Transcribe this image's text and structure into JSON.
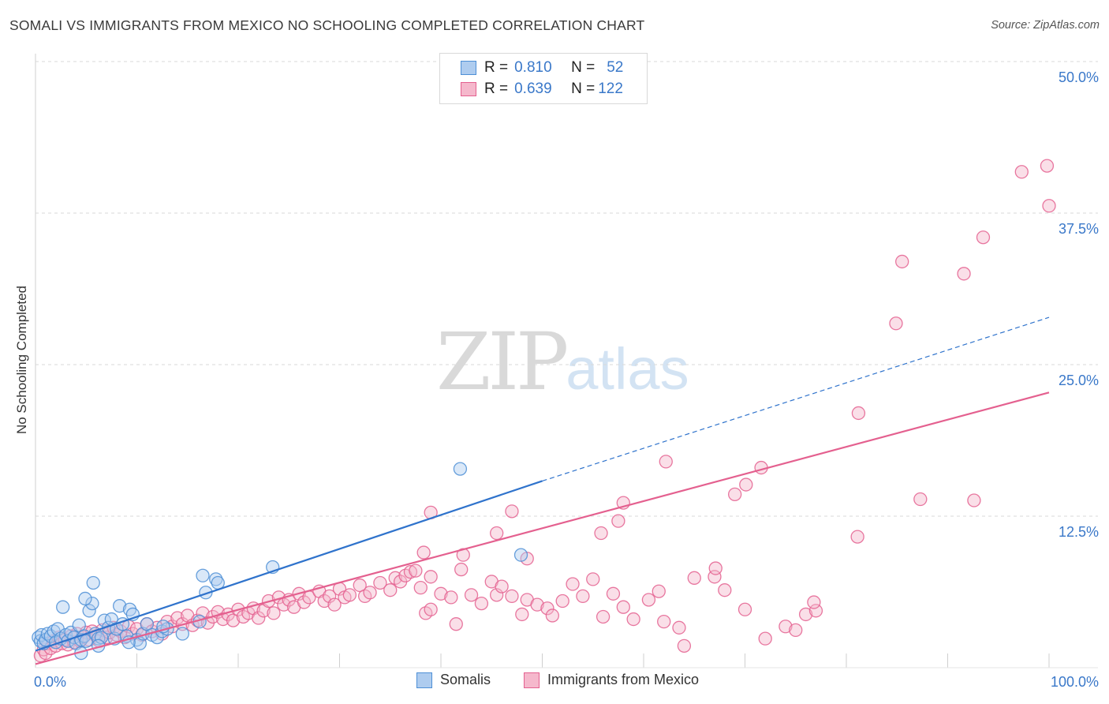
{
  "title": "SOMALI VS IMMIGRANTS FROM MEXICO NO SCHOOLING COMPLETED CORRELATION CHART",
  "source": "Source: ZipAtlas.com",
  "watermark": {
    "part1": "ZIP",
    "part2": "atlas"
  },
  "colors": {
    "somali": "#4d8fd6",
    "somali_fill": "#aeccef",
    "mexico": "#e4608f",
    "mexico_fill": "#f5b8cc",
    "value_text": "#3a78c9",
    "grid": "#d9d9d9"
  },
  "legend": {
    "rows": [
      {
        "r_label": "R =",
        "r_value": "0.810",
        "n_label": "N =",
        "n_value": "52"
      },
      {
        "r_label": "R =",
        "r_value": "0.639",
        "n_label": "N =",
        "n_value": "122"
      }
    ]
  },
  "chart_data": {
    "type": "scatter",
    "title": "SOMALI VS IMMIGRANTS FROM MEXICO NO SCHOOLING COMPLETED CORRELATION CHART",
    "xlabel": "",
    "ylabel": "No Schooling Completed",
    "xlim": [
      0,
      100
    ],
    "ylim": [
      0,
      50
    ],
    "x_tick_labels": [
      "0.0%",
      "100.0%"
    ],
    "y_ticks": [
      12.5,
      25.0,
      37.5,
      50.0
    ],
    "y_tick_labels": [
      "12.5%",
      "25.0%",
      "37.5%",
      "50.0%"
    ],
    "series": [
      {
        "name": "Somalis",
        "r": 0.81,
        "n": 52,
        "trend": {
          "x0": 0,
          "y0": 1.4,
          "x1": 50,
          "y1": 15.4,
          "dashed_to_x": 100,
          "dashed_to_y": 28.9
        },
        "points": [
          [
            0.3,
            2.5
          ],
          [
            0.5,
            2.2
          ],
          [
            0.6,
            2.7
          ],
          [
            0.8,
            2.0
          ],
          [
            1.0,
            2.3
          ],
          [
            1.2,
            2.8
          ],
          [
            1.5,
            2.6
          ],
          [
            1.8,
            3.0
          ],
          [
            2.0,
            2.1
          ],
          [
            2.2,
            3.2
          ],
          [
            2.5,
            2.4
          ],
          [
            2.7,
            5.0
          ],
          [
            3.0,
            2.7
          ],
          [
            3.2,
            2.2
          ],
          [
            3.5,
            2.9
          ],
          [
            3.8,
            2.5
          ],
          [
            4.0,
            2.0
          ],
          [
            4.3,
            3.5
          ],
          [
            4.5,
            2.3
          ],
          [
            4.8,
            2.6
          ],
          [
            5.0,
            2.2
          ],
          [
            5.3,
            4.7
          ],
          [
            5.6,
            5.3
          ],
          [
            5.9,
            2.8
          ],
          [
            6.2,
            2.4
          ],
          [
            6.5,
            2.5
          ],
          [
            6.8,
            3.9
          ],
          [
            7.2,
            3.3
          ],
          [
            7.5,
            4.0
          ],
          [
            7.8,
            2.4
          ],
          [
            8.0,
            3.2
          ],
          [
            8.3,
            5.1
          ],
          [
            8.6,
            3.6
          ],
          [
            9.0,
            2.6
          ],
          [
            9.3,
            4.8
          ],
          [
            9.6,
            4.4
          ],
          [
            10.0,
            2.3
          ],
          [
            10.3,
            2.0
          ],
          [
            10.6,
            2.8
          ],
          [
            11.0,
            3.6
          ],
          [
            11.5,
            2.7
          ],
          [
            12.0,
            2.5
          ],
          [
            12.5,
            3.0
          ],
          [
            13.0,
            3.2
          ],
          [
            14.5,
            2.8
          ],
          [
            4.5,
            1.2
          ],
          [
            6.2,
            1.8
          ],
          [
            9.2,
            2.1
          ],
          [
            12.6,
            3.4
          ],
          [
            16.2,
            3.8
          ],
          [
            16.8,
            6.2
          ],
          [
            17.8,
            7.3
          ]
        ],
        "extra_points": [
          [
            5.7,
            7.0
          ],
          [
            4.9,
            5.7
          ],
          [
            16.5,
            7.6
          ],
          [
            18.0,
            7.0
          ],
          [
            23.4,
            8.3
          ],
          [
            47.9,
            9.3
          ],
          [
            41.9,
            16.4
          ]
        ]
      },
      {
        "name": "Immigrants from Mexico",
        "r": 0.639,
        "n": 122,
        "trend": {
          "x0": 0,
          "y0": 0.3,
          "x1": 100,
          "y1": 22.7
        },
        "points": [
          [
            0.5,
            1.0
          ],
          [
            0.8,
            1.5
          ],
          [
            1.0,
            1.2
          ],
          [
            1.2,
            2.0
          ],
          [
            1.5,
            1.6
          ],
          [
            1.8,
            2.2
          ],
          [
            2.0,
            1.8
          ],
          [
            2.3,
            2.5
          ],
          [
            2.6,
            2.0
          ],
          [
            2.9,
            2.3
          ],
          [
            3.2,
            1.9
          ],
          [
            3.5,
            2.6
          ],
          [
            3.8,
            2.1
          ],
          [
            4.1,
            2.8
          ],
          [
            4.4,
            2.2
          ],
          [
            4.7,
            2.5
          ],
          [
            5.0,
            2.9
          ],
          [
            5.3,
            2.3
          ],
          [
            5.6,
            3.0
          ],
          [
            6.0,
            2.6
          ],
          [
            6.3,
            2.2
          ],
          [
            6.6,
            3.1
          ],
          [
            7.0,
            2.5
          ],
          [
            7.3,
            2.9
          ],
          [
            7.7,
            3.3
          ],
          [
            8.0,
            2.7
          ],
          [
            8.4,
            3.0
          ],
          [
            8.8,
            2.5
          ],
          [
            9.2,
            3.4
          ],
          [
            9.6,
            2.8
          ],
          [
            10.0,
            3.2
          ],
          [
            10.5,
            2.7
          ],
          [
            11.0,
            3.6
          ],
          [
            11.5,
            3.0
          ],
          [
            12.0,
            3.3
          ],
          [
            12.5,
            2.8
          ],
          [
            13.0,
            3.8
          ],
          [
            13.5,
            3.4
          ],
          [
            14.0,
            4.1
          ],
          [
            14.5,
            3.6
          ],
          [
            15.0,
            4.3
          ],
          [
            15.5,
            3.5
          ],
          [
            16.0,
            3.9
          ],
          [
            16.5,
            4.5
          ],
          [
            17.0,
            3.7
          ],
          [
            17.5,
            4.2
          ],
          [
            18.0,
            4.6
          ],
          [
            18.5,
            4.0
          ],
          [
            19.0,
            4.4
          ],
          [
            19.5,
            3.9
          ],
          [
            20.0,
            4.8
          ],
          [
            20.5,
            4.2
          ],
          [
            21.0,
            4.5
          ],
          [
            21.5,
            4.9
          ],
          [
            22.0,
            4.1
          ],
          [
            22.5,
            4.7
          ],
          [
            23.0,
            5.5
          ],
          [
            23.5,
            4.5
          ],
          [
            24.0,
            5.8
          ],
          [
            24.5,
            5.2
          ],
          [
            25.0,
            5.6
          ],
          [
            25.5,
            5.0
          ],
          [
            26.0,
            6.1
          ],
          [
            26.5,
            5.4
          ],
          [
            27.0,
            5.8
          ],
          [
            28.0,
            6.3
          ],
          [
            28.5,
            5.5
          ],
          [
            29.0,
            5.9
          ],
          [
            29.5,
            5.2
          ],
          [
            30.0,
            6.5
          ],
          [
            30.5,
            5.8
          ],
          [
            31.0,
            6.0
          ],
          [
            32.0,
            6.8
          ],
          [
            32.5,
            5.9
          ],
          [
            33.0,
            6.2
          ],
          [
            34.0,
            7.0
          ],
          [
            35.0,
            6.4
          ],
          [
            35.5,
            7.4
          ],
          [
            36.0,
            7.1
          ],
          [
            36.5,
            7.6
          ],
          [
            37.0,
            7.9
          ],
          [
            37.5,
            8.0
          ],
          [
            38.0,
            6.6
          ],
          [
            38.5,
            4.5
          ],
          [
            39.0,
            7.5
          ],
          [
            40.0,
            6.1
          ],
          [
            41.0,
            5.8
          ],
          [
            42.0,
            8.1
          ],
          [
            43.0,
            6.0
          ],
          [
            44.0,
            5.3
          ],
          [
            45.0,
            7.1
          ],
          [
            45.5,
            6.0
          ],
          [
            46.0,
            6.7
          ],
          [
            47.0,
            5.9
          ],
          [
            48.0,
            4.4
          ],
          [
            48.5,
            5.6
          ],
          [
            49.5,
            5.2
          ],
          [
            50.5,
            4.9
          ],
          [
            51.0,
            4.3
          ],
          [
            52.0,
            5.5
          ],
          [
            53.0,
            6.9
          ],
          [
            54.0,
            5.9
          ],
          [
            55.0,
            7.3
          ],
          [
            56.0,
            4.2
          ],
          [
            57.0,
            6.1
          ],
          [
            58.0,
            5.0
          ],
          [
            59.0,
            4.0
          ],
          [
            60.5,
            5.6
          ],
          [
            61.5,
            6.3
          ],
          [
            62.0,
            3.8
          ],
          [
            63.5,
            3.3
          ],
          [
            64.0,
            1.8
          ],
          [
            65.0,
            7.4
          ],
          [
            67.0,
            7.5
          ],
          [
            68.0,
            6.4
          ],
          [
            70.0,
            4.8
          ],
          [
            72.0,
            2.4
          ],
          [
            74.0,
            3.4
          ],
          [
            75.0,
            3.1
          ],
          [
            76.0,
            4.4
          ],
          [
            77.0,
            4.7
          ],
          [
            39.0,
            4.8
          ],
          [
            41.5,
            3.6
          ]
        ],
        "outliers": [
          [
            39.0,
            12.8
          ],
          [
            38.3,
            9.5
          ],
          [
            42.2,
            9.3
          ],
          [
            45.5,
            11.1
          ],
          [
            47.0,
            12.9
          ],
          [
            48.5,
            9.0
          ],
          [
            55.8,
            11.1
          ],
          [
            57.5,
            12.1
          ],
          [
            58.0,
            13.6
          ],
          [
            62.2,
            17.0
          ],
          [
            67.1,
            8.2
          ],
          [
            69.0,
            14.3
          ],
          [
            70.1,
            15.1
          ],
          [
            71.6,
            16.5
          ],
          [
            76.8,
            5.4
          ],
          [
            81.1,
            10.8
          ],
          [
            81.2,
            21.0
          ],
          [
            84.9,
            28.4
          ],
          [
            85.5,
            33.5
          ],
          [
            87.3,
            13.9
          ],
          [
            91.6,
            32.5
          ],
          [
            92.6,
            13.8
          ],
          [
            93.5,
            35.5
          ],
          [
            97.3,
            40.9
          ],
          [
            99.8,
            41.4
          ],
          [
            100.0,
            38.1
          ]
        ]
      }
    ]
  },
  "bottom_legend": {
    "items": [
      "Somalis",
      "Immigrants from Mexico"
    ]
  }
}
